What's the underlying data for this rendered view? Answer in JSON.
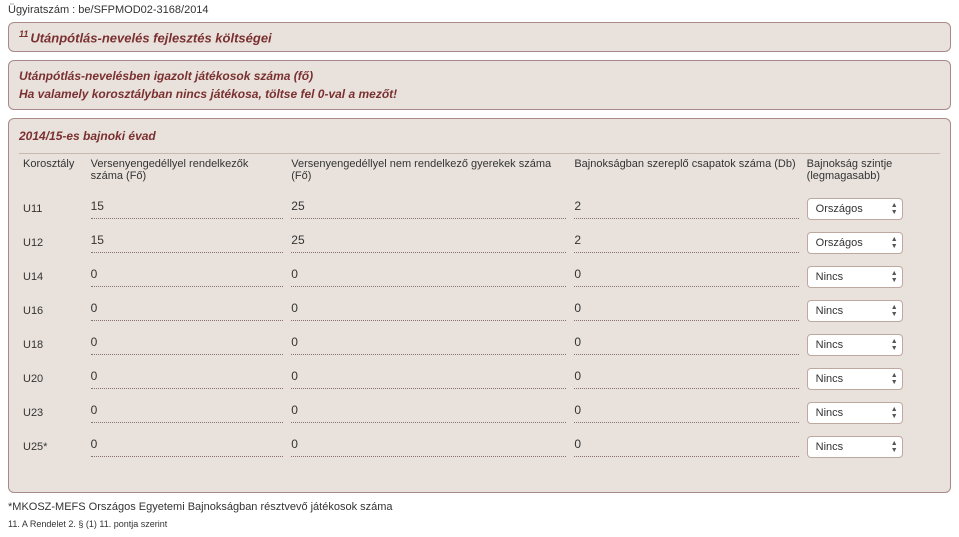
{
  "header": {
    "docnum_label": "Ügyiratszám : ",
    "docnum_value": "be/SFPMOD02-3168/2014"
  },
  "title_box": {
    "sup": "11",
    "text": "Utánpótlás-nevelés fejlesztés költségei"
  },
  "info_box": {
    "line1": "Utánpótlás-nevelésben igazolt játékosok száma (fő)",
    "line2": "Ha valamely korosztályban nincs játékosa, töltse fel 0-val a mezőt!"
  },
  "main": {
    "season": "2014/15-es bajnoki évad",
    "columns": {
      "age": "Korosztály",
      "licensed": "Versenyengedéllyel rendelkezők száma (Fő)",
      "unlicensed": "Versenyengedéllyel nem rendelkező gyerekek száma (Fő)",
      "teams": "Bajnokságban szereplő csapatok száma (Db)",
      "level": "Bajnokság szintje (legmagasabb)"
    },
    "rows": [
      {
        "age": "U11",
        "licensed": "15",
        "unlicensed": "25",
        "teams": "2",
        "level": "Országos"
      },
      {
        "age": "U12",
        "licensed": "15",
        "unlicensed": "25",
        "teams": "2",
        "level": "Országos"
      },
      {
        "age": "U14",
        "licensed": "0",
        "unlicensed": "0",
        "teams": "0",
        "level": "Nincs"
      },
      {
        "age": "U16",
        "licensed": "0",
        "unlicensed": "0",
        "teams": "0",
        "level": "Nincs"
      },
      {
        "age": "U18",
        "licensed": "0",
        "unlicensed": "0",
        "teams": "0",
        "level": "Nincs"
      },
      {
        "age": "U20",
        "licensed": "0",
        "unlicensed": "0",
        "teams": "0",
        "level": "Nincs"
      },
      {
        "age": "U23",
        "licensed": "0",
        "unlicensed": "0",
        "teams": "0",
        "level": "Nincs"
      },
      {
        "age": "U25*",
        "licensed": "0",
        "unlicensed": "0",
        "teams": "0",
        "level": "Nincs"
      }
    ]
  },
  "footnotes": {
    "f1": "*MKOSZ-MEFS Országos Egyetemi Bajnokságban résztvevő játékosok száma",
    "f2": "11. A Rendelet 2. § (1) 11. pontja szerint"
  }
}
